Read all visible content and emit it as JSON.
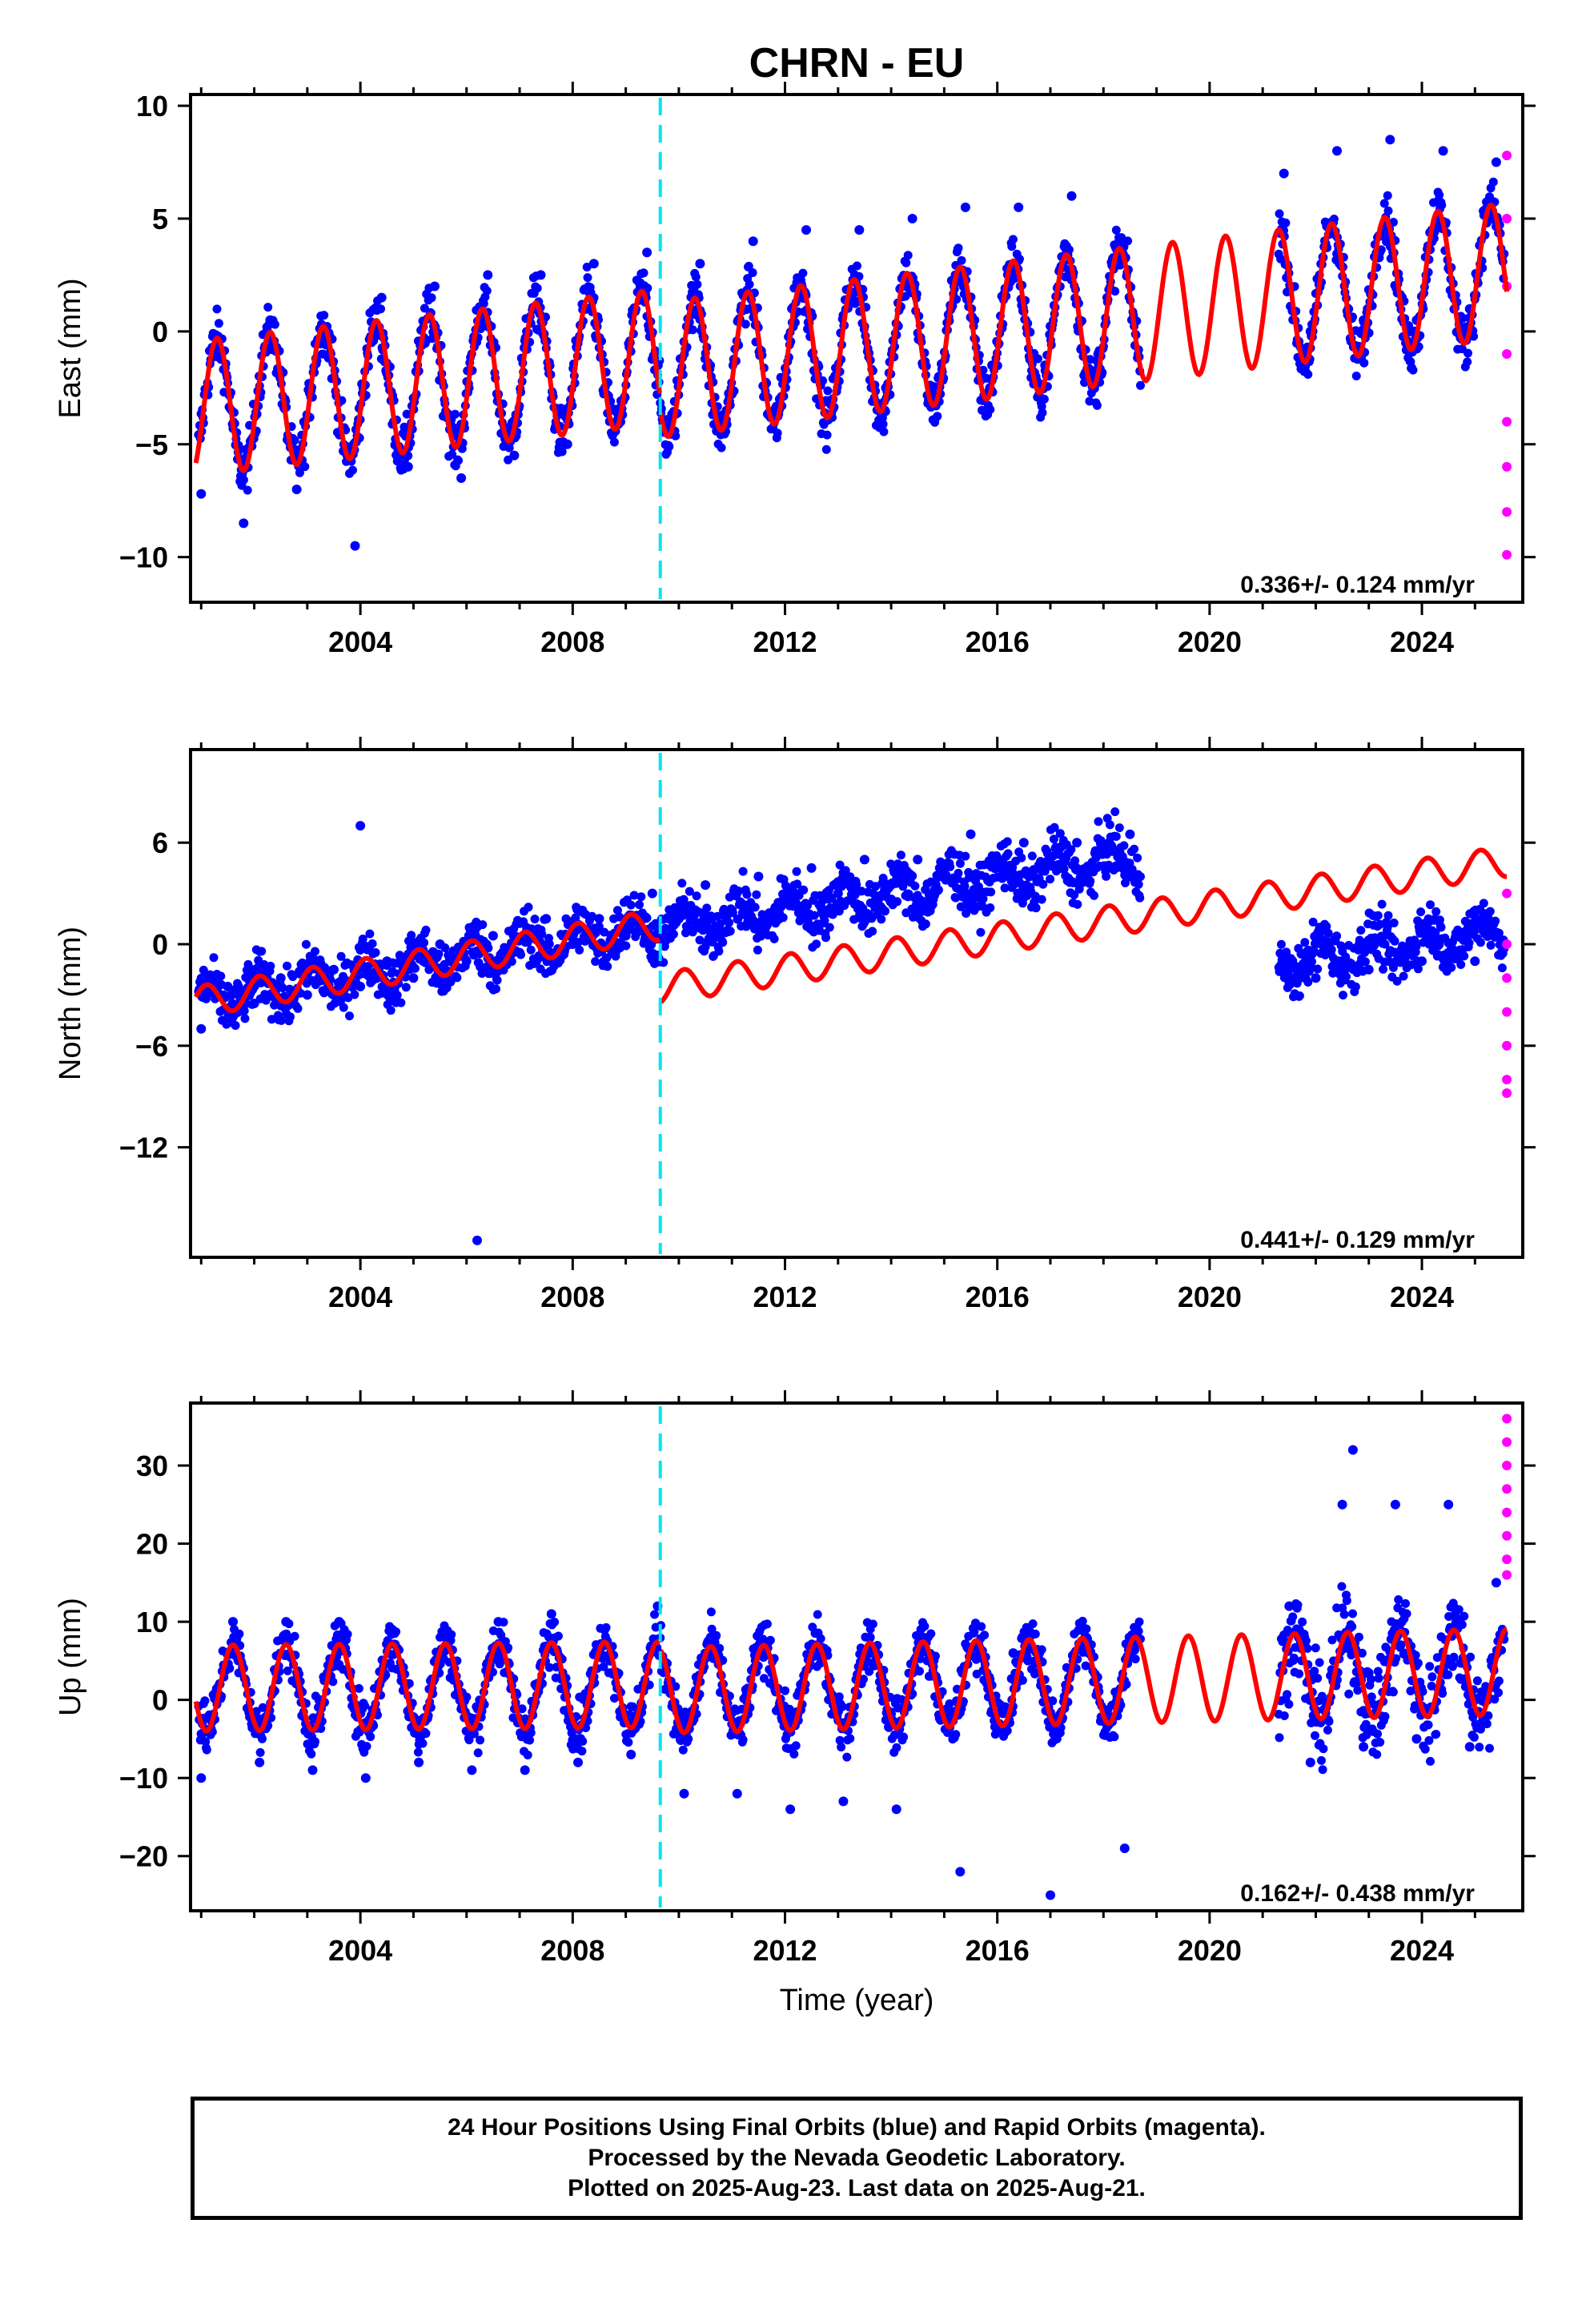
{
  "chart_data": [
    {
      "type": "scatter",
      "title": "CHRN - EU",
      "ylabel": "East (mm)",
      "xlabel": "",
      "xlim": [
        2000.8,
        2025.9
      ],
      "ylim": [
        -12,
        10.5
      ],
      "yticks": [
        10,
        5,
        0,
        -5,
        -10
      ],
      "xticks": [
        2004,
        2008,
        2012,
        2016,
        2020,
        2024
      ],
      "rate_label": "0.336+/- 0.124 mm/yr",
      "offset_year": 2009.65,
      "model": {
        "segments": [
          {
            "x0": 2000.9,
            "x1": 2009.65,
            "y0": -3.4,
            "slope": 0.26
          },
          {
            "x0": 2009.65,
            "x1": 2025.6,
            "y0": -1.7,
            "slope": 0.275
          }
        ],
        "amplitude": 3.0,
        "phase_peak": 0.3
      },
      "series": [
        {
          "name": "Final Orbits",
          "color": "#0000ff",
          "values": [
            [
              2001.0,
              -7.2
            ],
            [
              2001.3,
              -1.0
            ],
            [
              2001.8,
              -8.5
            ],
            [
              2002.3,
              0.5
            ],
            [
              2002.8,
              -7.0
            ],
            [
              2003.3,
              0.0
            ],
            [
              2003.9,
              -9.5
            ],
            [
              2004.4,
              1.5
            ],
            [
              2004.9,
              -6.0
            ],
            [
              2005.4,
              2.0
            ],
            [
              2005.9,
              -6.5
            ],
            [
              2006.4,
              2.5
            ],
            [
              2006.9,
              -5.5
            ],
            [
              2007.4,
              2.5
            ],
            [
              2007.9,
              -5.0
            ],
            [
              2008.4,
              3.0
            ],
            [
              2008.9,
              -4.0
            ],
            [
              2009.4,
              3.5
            ],
            [
              2009.9,
              -4.5
            ],
            [
              2010.4,
              3.0
            ],
            [
              2010.9,
              -3.5
            ],
            [
              2011.4,
              4.0
            ],
            [
              2011.9,
              -3.0
            ],
            [
              2012.4,
              4.5
            ],
            [
              2012.9,
              -3.0
            ],
            [
              2013.4,
              4.5
            ],
            [
              2013.9,
              -2.5
            ],
            [
              2014.4,
              5.0
            ],
            [
              2014.9,
              -2.0
            ],
            [
              2015.4,
              5.5
            ],
            [
              2015.9,
              -1.5
            ],
            [
              2016.4,
              5.5
            ],
            [
              2016.9,
              -1.5
            ],
            [
              2017.4,
              6.0
            ],
            [
              2017.9,
              -1.0
            ],
            [
              2021.4,
              7.0
            ],
            [
              2021.9,
              0.0
            ],
            [
              2022.4,
              8.0
            ],
            [
              2022.9,
              0.5
            ],
            [
              2023.4,
              8.5
            ],
            [
              2023.9,
              0.5
            ],
            [
              2024.4,
              8.0
            ],
            [
              2024.9,
              1.0
            ],
            [
              2025.4,
              7.5
            ]
          ]
        },
        {
          "name": "Rapid Orbits",
          "color": "#ff00ff",
          "values": [
            [
              2025.6,
              7.8
            ],
            [
              2025.6,
              5.0
            ],
            [
              2025.6,
              2.0
            ],
            [
              2025.6,
              -1.0
            ],
            [
              2025.6,
              -4.0
            ],
            [
              2025.6,
              -6.0
            ],
            [
              2025.6,
              -8.0
            ],
            [
              2025.6,
              -9.9
            ]
          ]
        }
      ]
    },
    {
      "type": "scatter",
      "title": "",
      "ylabel": "North (mm)",
      "xlabel": "",
      "xlim": [
        2000.8,
        2025.9
      ],
      "ylim": [
        -18.5,
        11.5
      ],
      "yticks": [
        6,
        0,
        -6,
        -12
      ],
      "xticks": [
        2004,
        2008,
        2012,
        2016,
        2020,
        2024
      ],
      "rate_label": "0.441+/- 0.129 mm/yr",
      "offset_year": 2009.65,
      "model": {
        "segments": [
          {
            "x0": 2000.9,
            "x1": 2009.65,
            "y0": -3.4,
            "slope": 0.52
          },
          {
            "x0": 2009.65,
            "x1": 2025.6,
            "y0": -2.6,
            "slope": 0.47
          }
        ],
        "amplitude": 0.9,
        "phase_peak": 0.1
      },
      "series": [
        {
          "name": "Final Orbits",
          "color": "#0000ff",
          "values": [
            [
              2001.0,
              -5.0
            ],
            [
              2001.5,
              -2.5
            ],
            [
              2002.0,
              -3.5
            ],
            [
              2002.5,
              -2.0
            ],
            [
              2003.0,
              -3.0
            ],
            [
              2003.5,
              -1.5
            ],
            [
              2004.0,
              -2.5
            ],
            [
              2004.5,
              -1.0
            ],
            [
              2005.0,
              -2.0
            ],
            [
              2005.5,
              0.0
            ],
            [
              2006.0,
              -1.0
            ],
            [
              2006.5,
              0.5
            ],
            [
              2007.0,
              -0.5
            ],
            [
              2007.5,
              1.5
            ],
            [
              2008.0,
              0.0
            ],
            [
              2008.5,
              1.5
            ],
            [
              2009.0,
              0.5
            ],
            [
              2009.5,
              3.0
            ],
            [
              2010.0,
              1.5
            ],
            [
              2010.5,
              3.5
            ],
            [
              2011.0,
              2.0
            ],
            [
              2011.5,
              4.0
            ],
            [
              2012.0,
              2.5
            ],
            [
              2012.5,
              4.5
            ],
            [
              2013.0,
              3.0
            ],
            [
              2013.5,
              5.0
            ],
            [
              2014.0,
              3.5
            ],
            [
              2014.5,
              5.0
            ],
            [
              2015.5,
              6.5
            ],
            [
              2016.5,
              6.0
            ],
            [
              2017.5,
              6.0
            ],
            [
              2018.5,
              6.5
            ],
            [
              2021.5,
              -1.5
            ],
            [
              2022.0,
              -2.0
            ],
            [
              2022.5,
              -1.0
            ],
            [
              2023.0,
              -1.5
            ],
            [
              2023.5,
              -0.5
            ],
            [
              2024.0,
              -1.0
            ],
            [
              2024.5,
              -0.5
            ],
            [
              2025.0,
              -1.0
            ],
            [
              2025.5,
              -0.5
            ],
            [
              2006.2,
              -17.5
            ],
            [
              2004.0,
              7.0
            ]
          ]
        },
        {
          "name": "Rapid Orbits",
          "color": "#ff00ff",
          "values": [
            [
              2025.6,
              3.0
            ],
            [
              2025.6,
              0.0
            ],
            [
              2025.6,
              -2.0
            ],
            [
              2025.6,
              -4.0
            ],
            [
              2025.6,
              -6.0
            ],
            [
              2025.6,
              -8.0
            ],
            [
              2025.6,
              -8.8
            ]
          ]
        }
      ]
    },
    {
      "type": "scatter",
      "title": "",
      "ylabel": "Up (mm)",
      "xlabel": "Time (year)",
      "xlim": [
        2000.8,
        2025.9
      ],
      "ylim": [
        -27,
        38
      ],
      "yticks": [
        30,
        20,
        10,
        0,
        -10,
        -20
      ],
      "xticks": [
        2004,
        2008,
        2012,
        2016,
        2020,
        2024
      ],
      "rate_label": "0.162+/- 0.438 mm/yr",
      "offset_year": 2009.65,
      "model": {
        "segments": [
          {
            "x0": 2000.9,
            "x1": 2009.65,
            "y0": 1.5,
            "slope": 0.05
          },
          {
            "x0": 2009.65,
            "x1": 2025.6,
            "y0": 1.2,
            "slope": 0.15
          }
        ],
        "amplitude": 5.5,
        "phase_peak": 0.6
      },
      "series": [
        {
          "name": "Final Orbits",
          "color": "#0000ff",
          "values": [
            [
              2001.0,
              -10.0
            ],
            [
              2001.6,
              10.0
            ],
            [
              2002.1,
              -8.0
            ],
            [
              2002.6,
              10.0
            ],
            [
              2003.1,
              -9.0
            ],
            [
              2003.6,
              10.0
            ],
            [
              2004.1,
              -10.0
            ],
            [
              2004.6,
              9.0
            ],
            [
              2005.1,
              -8.0
            ],
            [
              2005.6,
              9.0
            ],
            [
              2006.1,
              -9.0
            ],
            [
              2006.6,
              10.0
            ],
            [
              2007.1,
              -9.0
            ],
            [
              2007.6,
              11.0
            ],
            [
              2008.1,
              -8.0
            ],
            [
              2008.6,
              9.0
            ],
            [
              2009.1,
              -7.0
            ],
            [
              2009.6,
              12.0
            ],
            [
              2010.1,
              -12.0
            ],
            [
              2010.6,
              8.0
            ],
            [
              2011.1,
              -12.0
            ],
            [
              2011.6,
              7.0
            ],
            [
              2012.1,
              -14.0
            ],
            [
              2012.6,
              7.0
            ],
            [
              2013.1,
              -13.0
            ],
            [
              2013.6,
              8.0
            ],
            [
              2014.1,
              -14.0
            ],
            [
              2014.6,
              8.0
            ],
            [
              2015.3,
              -22.0
            ],
            [
              2016.3,
              6.0
            ],
            [
              2017.0,
              -25.0
            ],
            [
              2018.4,
              -19.0
            ],
            [
              2021.5,
              12.0
            ],
            [
              2021.9,
              -8.0
            ],
            [
              2022.5,
              25.0
            ],
            [
              2022.9,
              -6.0
            ],
            [
              2023.5,
              25.0
            ],
            [
              2023.9,
              -5.0
            ],
            [
              2024.5,
              25.0
            ],
            [
              2024.9,
              -6.0
            ],
            [
              2025.4,
              15.0
            ],
            [
              2022.7,
              32.0
            ]
          ]
        },
        {
          "name": "Rapid Orbits",
          "color": "#ff00ff",
          "values": [
            [
              2025.6,
              36.0
            ],
            [
              2025.6,
              33.0
            ],
            [
              2025.6,
              30.0
            ],
            [
              2025.6,
              27.0
            ],
            [
              2025.6,
              24.0
            ],
            [
              2025.6,
              21.0
            ],
            [
              2025.6,
              18.0
            ],
            [
              2025.6,
              16.0
            ]
          ]
        }
      ]
    }
  ],
  "footer": {
    "line1": "24 Hour Positions Using Final Orbits (blue) and Rapid Orbits (magenta).",
    "line2": "Processed by the Nevada Geodetic Laboratory.",
    "line3": "Plotted on 2025-Aug-23. Last data on 2025-Aug-21."
  },
  "colors": {
    "final": "#0000ff",
    "rapid": "#ff00ff",
    "model": "#ff0000",
    "offset": "#00e5ee"
  }
}
